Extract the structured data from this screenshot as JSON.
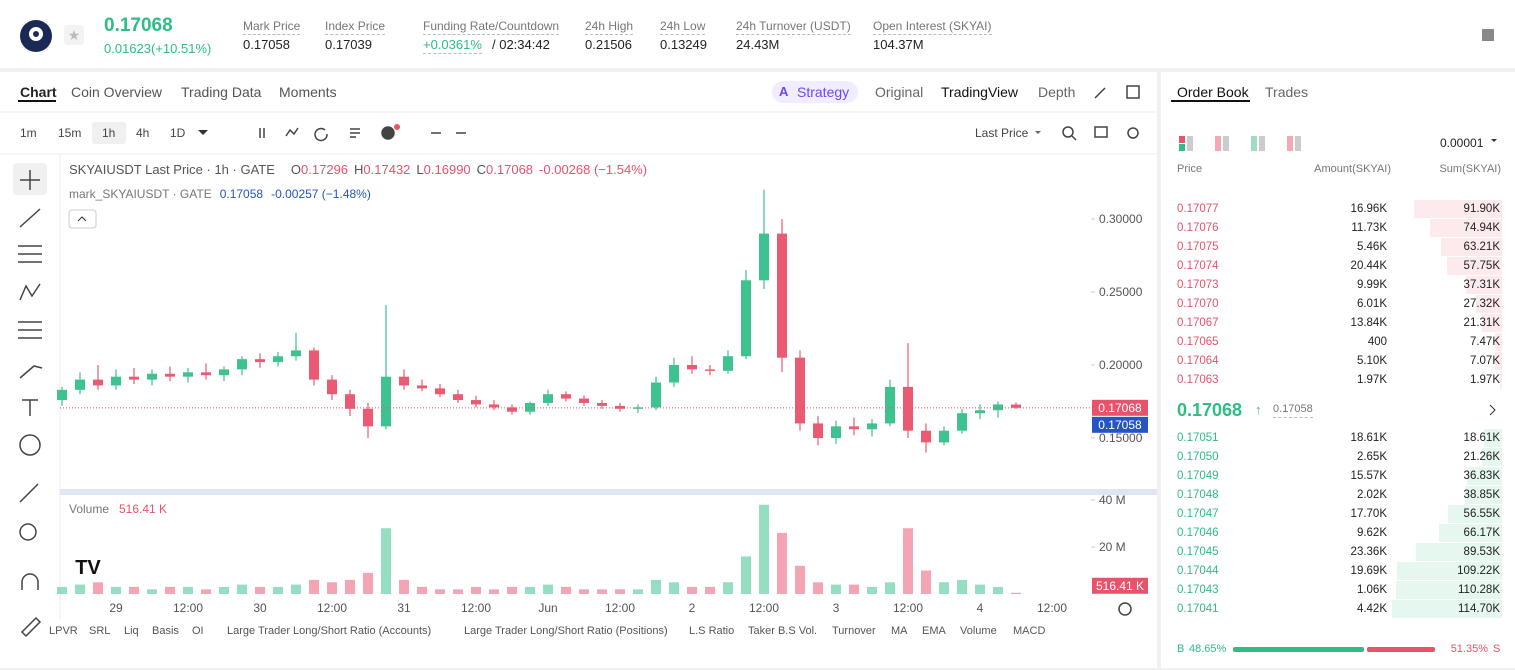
{
  "header": {
    "price": "0.17068",
    "change": "0.01623(+10.51%)",
    "stats": [
      {
        "label": "Mark Price",
        "value": "0.17058"
      },
      {
        "label": "Index Price",
        "value": "0.17039"
      },
      {
        "label": "Funding Rate/Countdown",
        "value": "+0.0361%",
        "extra": "/ 02:34:42"
      },
      {
        "label": "24h High",
        "value": "0.21506"
      },
      {
        "label": "24h Low",
        "value": "0.13249"
      },
      {
        "label": "24h Turnover (USDT)",
        "value": "24.43M"
      },
      {
        "label": "Open Interest (SKYAI)",
        "value": "104.37M"
      }
    ]
  },
  "tabs": [
    "Chart",
    "Coin Overview",
    "Trading Data",
    "Moments"
  ],
  "views": [
    "Strategy",
    "Original",
    "TradingView",
    "Depth"
  ],
  "intervals": [
    "1m",
    "15m",
    "1h",
    "4h",
    "1D"
  ],
  "price_source": "Last Price",
  "legend": {
    "title": "SKYAIUSDT Last Price · 1h · GATE",
    "ohlc": [
      {
        "key": "O",
        "value": "0.17296"
      },
      {
        "key": "H",
        "value": "0.17432"
      },
      {
        "key": "L",
        "value": "0.16990"
      },
      {
        "key": "C",
        "value": "0.17068"
      }
    ],
    "change": "-0.00268 (−1.54%)",
    "mark_title": "mark_SKYAIUSDT · GATE",
    "mark_value": "0.17058",
    "mark_change": "-0.00257 (−1.48%)",
    "volume_title": "Volume"
  },
  "indicators": [
    "LPVR",
    "SRL",
    "Liq",
    "Basis",
    "OI",
    "Large Trader Long/Short Ratio (Accounts)",
    "Large Trader Long/Short Ratio (Positions)",
    "L.S Ratio",
    "Taker B.S Vol.",
    "Turnover",
    "MA",
    "EMA",
    "Volume",
    "MACD"
  ],
  "chart_data": {
    "type": "candlestick",
    "up_color": "#3ec28f",
    "down_color": "#eb5a73",
    "categories": [
      null,
      null,
      null,
      "29",
      null,
      null,
      null,
      "12:00",
      null,
      null,
      null,
      "30",
      null,
      null,
      null,
      "12:00",
      null,
      null,
      null,
      "31",
      null,
      null,
      null,
      "12:00",
      null,
      null,
      null,
      "Jun",
      null,
      null,
      null,
      "12:00",
      null,
      null,
      null,
      "2",
      null,
      null,
      null,
      "12:00",
      null,
      null,
      null,
      "3",
      null,
      null,
      null,
      "12:00",
      null,
      null,
      null,
      "4",
      null,
      null,
      null,
      "12:00"
    ],
    "open": [
      0.176,
      0.183,
      0.19,
      0.186,
      0.192,
      0.19,
      0.194,
      0.192,
      0.195,
      0.193,
      0.197,
      0.204,
      0.202,
      0.206,
      0.21,
      0.19,
      0.18,
      0.17,
      0.158,
      0.192,
      0.186,
      0.184,
      0.18,
      0.176,
      0.173,
      0.171,
      0.168,
      0.174,
      0.18,
      0.177,
      0.174,
      0.172,
      0.17,
      0.171,
      0.188,
      0.2,
      0.197,
      0.196,
      0.206,
      0.258,
      0.29,
      0.205,
      0.16,
      0.15,
      0.158,
      0.156,
      0.16,
      0.185,
      0.155,
      0.147,
      0.155,
      0.167,
      0.169,
      0.17296,
      null,
      null
    ],
    "high": [
      0.185,
      0.195,
      0.2,
      0.197,
      0.198,
      0.197,
      0.199,
      0.198,
      0.201,
      0.199,
      0.206,
      0.208,
      0.209,
      0.222,
      0.212,
      0.193,
      0.183,
      0.174,
      0.241,
      0.197,
      0.19,
      0.187,
      0.183,
      0.179,
      0.176,
      0.173,
      0.175,
      0.183,
      0.182,
      0.179,
      0.176,
      0.174,
      0.173,
      0.192,
      0.205,
      0.206,
      0.2,
      0.21,
      0.265,
      0.32,
      0.3,
      0.21,
      0.165,
      0.162,
      0.164,
      0.163,
      0.19,
      0.215,
      0.16,
      0.158,
      0.17,
      0.173,
      0.175,
      0.17432,
      null,
      null
    ],
    "low": [
      0.172,
      0.18,
      0.183,
      0.183,
      0.187,
      0.186,
      0.189,
      0.188,
      0.19,
      0.189,
      0.193,
      0.198,
      0.199,
      0.203,
      0.186,
      0.176,
      0.165,
      0.15,
      0.156,
      0.183,
      0.182,
      0.178,
      0.174,
      0.171,
      0.169,
      0.166,
      0.166,
      0.172,
      0.175,
      0.172,
      0.17,
      0.168,
      0.167,
      0.169,
      0.185,
      0.194,
      0.193,
      0.194,
      0.204,
      0.252,
      0.195,
      0.155,
      0.145,
      0.146,
      0.152,
      0.151,
      0.158,
      0.15,
      0.14,
      0.145,
      0.153,
      0.163,
      0.164,
      0.1699,
      null,
      null
    ],
    "close": [
      0.183,
      0.19,
      0.186,
      0.192,
      0.19,
      0.194,
      0.192,
      0.195,
      0.193,
      0.197,
      0.204,
      0.202,
      0.206,
      0.21,
      0.19,
      0.18,
      0.17,
      0.158,
      0.192,
      0.186,
      0.184,
      0.18,
      0.176,
      0.173,
      0.171,
      0.168,
      0.174,
      0.18,
      0.177,
      0.174,
      0.172,
      0.17,
      0.171,
      0.188,
      0.2,
      0.197,
      0.196,
      0.206,
      0.258,
      0.29,
      0.205,
      0.16,
      0.15,
      0.158,
      0.156,
      0.16,
      0.185,
      0.155,
      0.147,
      0.155,
      0.167,
      0.169,
      0.173,
      0.17068,
      null,
      null
    ],
    "volume": [
      3,
      4,
      5,
      3,
      3,
      2,
      3,
      3,
      2,
      3,
      4,
      3,
      3,
      4,
      6,
      5,
      6,
      9,
      28,
      6,
      3,
      2,
      2,
      3,
      2,
      3,
      3,
      4,
      3,
      2,
      2,
      2,
      2,
      6,
      5,
      3,
      3,
      5,
      16,
      38,
      26,
      12,
      5,
      4,
      4,
      3,
      5,
      28,
      10,
      5,
      6,
      4,
      3,
      0.51641,
      null,
      null
    ],
    "ylim": [
      0.1144,
      0.3438
    ],
    "yticks": [
      {
        "value": 0.3,
        "label": "0.30000"
      },
      {
        "value": 0.25,
        "label": "0.25000"
      },
      {
        "value": 0.2,
        "label": "0.20000"
      },
      {
        "value": 0.15,
        "label": "0.15000"
      }
    ],
    "y2lim": [
      0,
      41.3
    ],
    "y2ticks": [
      {
        "value": 40,
        "label": "40 M"
      },
      {
        "value": 20,
        "label": "20 M"
      }
    ],
    "last_price": 0.17068,
    "mark_price": 0.17058,
    "volume_tag": {
      "value": 0.51641,
      "label": "516.41 K"
    }
  },
  "order_book": {
    "tabs": [
      "Order Book",
      "Trades"
    ],
    "precision": "0.00001",
    "headers": [
      "Price",
      "Amount(SKYAI)",
      "Sum(SKYAI)"
    ],
    "asks": [
      [
        "0.17077",
        "16.96K",
        "91.90K"
      ],
      [
        "0.17076",
        "11.73K",
        "74.94K"
      ],
      [
        "0.17075",
        "5.46K",
        "63.21K"
      ],
      [
        "0.17074",
        "20.44K",
        "57.75K"
      ],
      [
        "0.17073",
        "9.99K",
        "37.31K"
      ],
      [
        "0.17070",
        "6.01K",
        "27.32K"
      ],
      [
        "0.17067",
        "13.84K",
        "21.31K"
      ],
      [
        "0.17065",
        "400",
        "7.47K"
      ],
      [
        "0.17064",
        "5.10K",
        "7.07K"
      ],
      [
        "0.17063",
        "1.97K",
        "1.97K"
      ]
    ],
    "mid": {
      "price": "0.17068",
      "mark": "0.17058"
    },
    "bids": [
      [
        "0.17051",
        "18.61K",
        "18.61K"
      ],
      [
        "0.17050",
        "2.65K",
        "21.26K"
      ],
      [
        "0.17049",
        "15.57K",
        "36.83K"
      ],
      [
        "0.17048",
        "2.02K",
        "38.85K"
      ],
      [
        "0.17047",
        "17.70K",
        "56.55K"
      ],
      [
        "0.17046",
        "9.62K",
        "66.17K"
      ],
      [
        "0.17045",
        "23.36K",
        "89.53K"
      ],
      [
        "0.17044",
        "19.69K",
        "109.22K"
      ],
      [
        "0.17043",
        "1.06K",
        "110.28K"
      ],
      [
        "0.17041",
        "4.42K",
        "114.70K"
      ]
    ],
    "ratio": {
      "buy_label": "B",
      "buy": "48.65%",
      "sell": "51.35%",
      "sell_label": "S"
    }
  }
}
